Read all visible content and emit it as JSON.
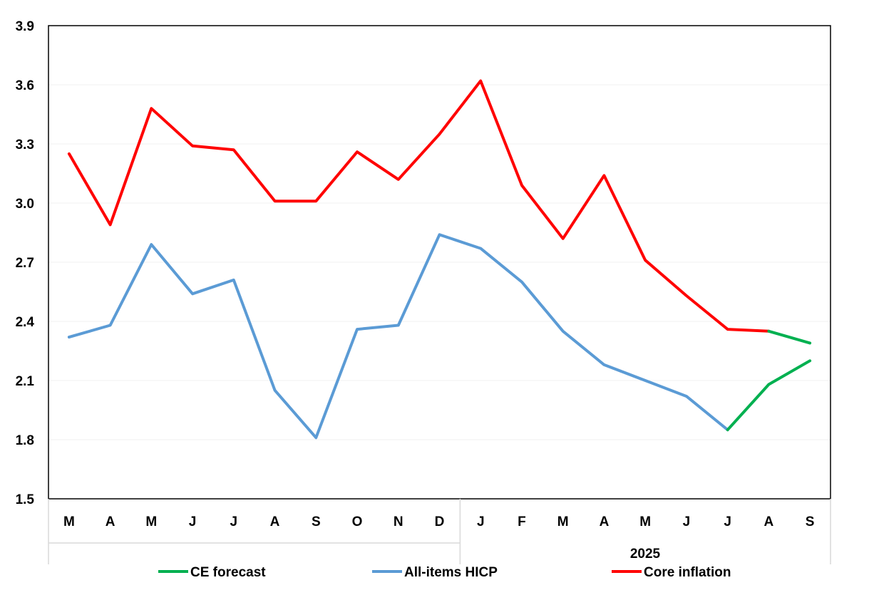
{
  "chart_data": {
    "type": "line",
    "categories": [
      "M",
      "A",
      "M",
      "J",
      "J",
      "A",
      "S",
      "O",
      "N",
      "D",
      "J",
      "F",
      "M",
      "A",
      "M",
      "J",
      "J",
      "A",
      "S"
    ],
    "group_label": "2025",
    "ylim": [
      1.5,
      3.9
    ],
    "yticks": [
      "1.5",
      "1.8",
      "2.1",
      "2.4",
      "2.7",
      "3.0",
      "3.3",
      "3.6",
      "3.9"
    ],
    "grid": true,
    "legend_position": "bottom",
    "series": [
      {
        "name": "CE forecast",
        "color": "#00b050",
        "segments": [
          {
            "x_index": [
              17,
              18
            ],
            "values": [
              2.35,
              2.29
            ]
          },
          {
            "x_index": [
              16,
              17,
              18
            ],
            "values": [
              1.85,
              2.08,
              2.2
            ]
          }
        ]
      },
      {
        "name": "All-items HICP",
        "color": "#5b9bd5",
        "values": [
          2.32,
          2.38,
          2.79,
          2.54,
          2.61,
          2.05,
          1.81,
          2.36,
          2.38,
          2.84,
          2.77,
          2.6,
          2.35,
          2.18,
          2.1,
          2.02,
          1.85,
          null,
          null
        ]
      },
      {
        "name": "Core inflation",
        "color": "#ff0000",
        "values": [
          3.25,
          2.89,
          3.48,
          3.29,
          3.27,
          3.01,
          3.01,
          3.26,
          3.12,
          3.35,
          3.62,
          3.09,
          2.82,
          3.14,
          2.71,
          2.53,
          2.36,
          2.35,
          null
        ]
      }
    ]
  }
}
